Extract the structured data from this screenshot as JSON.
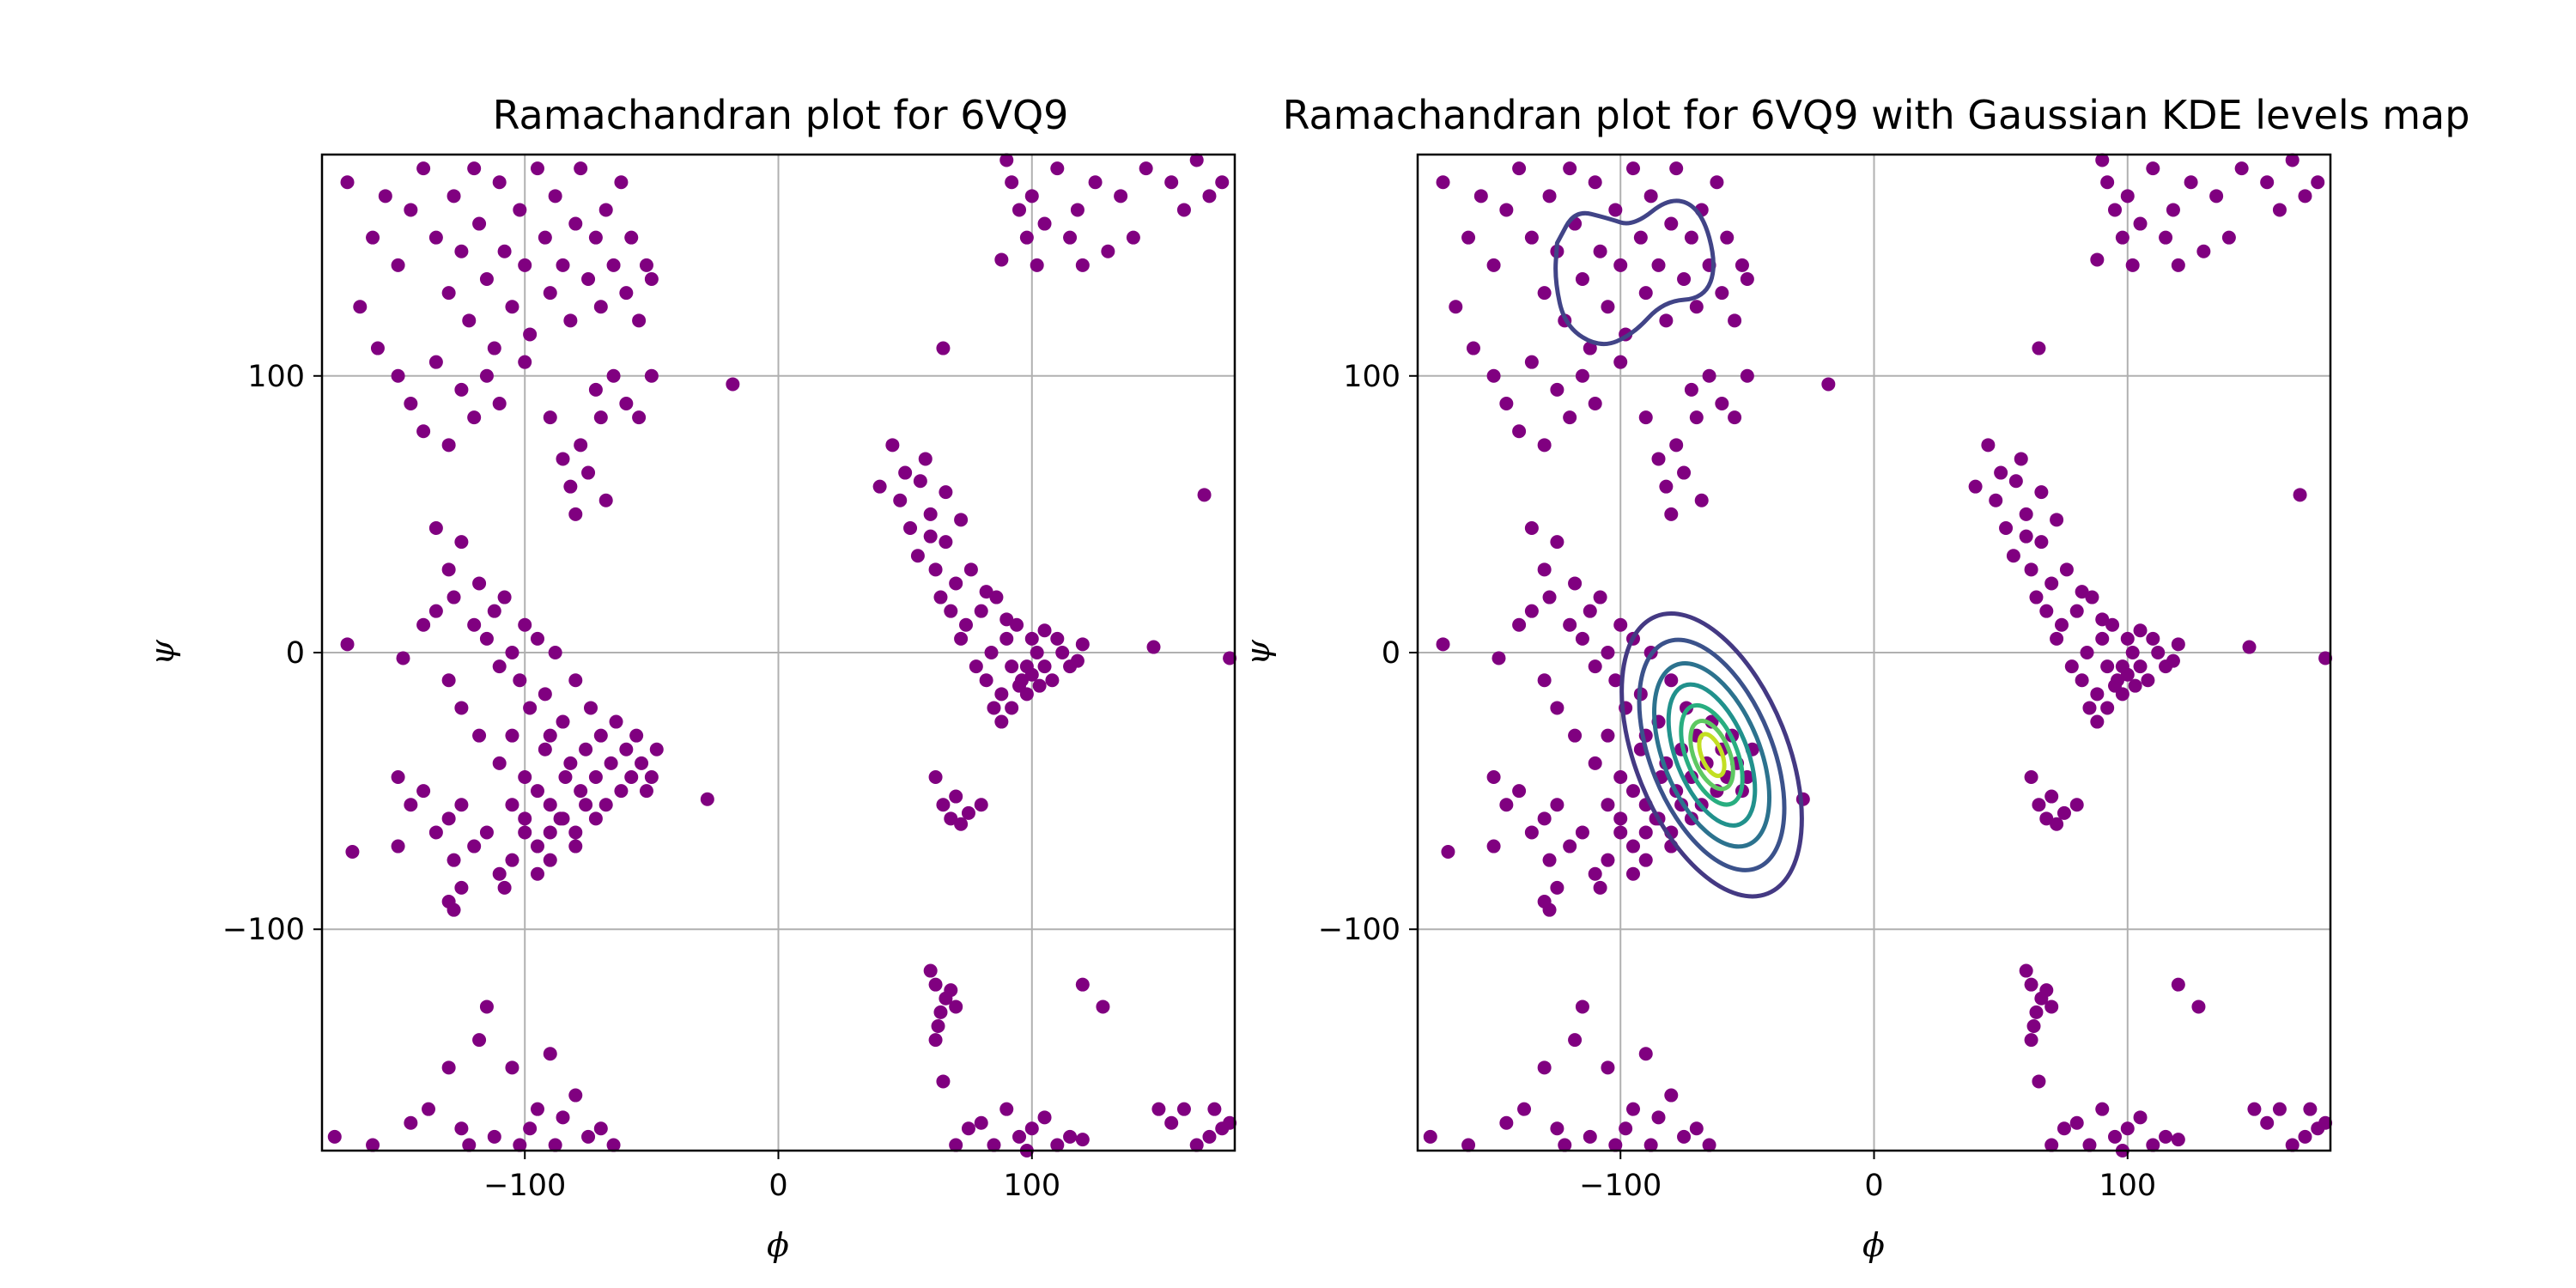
{
  "chart_data": [
    {
      "type": "scatter",
      "title": "Ramachandran plot for 6VQ9",
      "xlabel": "ϕ",
      "ylabel": "ψ",
      "xlim": [
        -180,
        180
      ],
      "ylim": [
        -180,
        180
      ],
      "xticks": [
        -100,
        0,
        100
      ],
      "yticks": [
        -100,
        0,
        100
      ],
      "x_tick_labels": [
        "−100",
        "0",
        "100"
      ],
      "y_tick_labels": [
        "−100",
        "0",
        "100"
      ],
      "grid": true,
      "point_color": "#800080",
      "points": [
        [
          -170,
          170
        ],
        [
          -160,
          150
        ],
        [
          -155,
          165
        ],
        [
          -150,
          140
        ],
        [
          -145,
          160
        ],
        [
          -140,
          175
        ],
        [
          -135,
          150
        ],
        [
          -130,
          130
        ],
        [
          -128,
          165
        ],
        [
          -125,
          145
        ],
        [
          -122,
          120
        ],
        [
          -120,
          175
        ],
        [
          -118,
          155
        ],
        [
          -115,
          135
        ],
        [
          -112,
          110
        ],
        [
          -110,
          170
        ],
        [
          -108,
          145
        ],
        [
          -105,
          125
        ],
        [
          -102,
          160
        ],
        [
          -100,
          140
        ],
        [
          -98,
          115
        ],
        [
          -95,
          175
        ],
        [
          -92,
          150
        ],
        [
          -90,
          130
        ],
        [
          -88,
          165
        ],
        [
          -85,
          140
        ],
        [
          -82,
          120
        ],
        [
          -80,
          155
        ],
        [
          -78,
          175
        ],
        [
          -75,
          135
        ],
        [
          -72,
          150
        ],
        [
          -70,
          125
        ],
        [
          -68,
          160
        ],
        [
          -65,
          140
        ],
        [
          -62,
          170
        ],
        [
          -60,
          130
        ],
        [
          -58,
          150
        ],
        [
          -55,
          120
        ],
        [
          -52,
          140
        ],
        [
          -50,
          135
        ],
        [
          -165,
          125
        ],
        [
          -158,
          110
        ],
        [
          -150,
          100
        ],
        [
          -145,
          90
        ],
        [
          -140,
          80
        ],
        [
          -135,
          105
        ],
        [
          -130,
          75
        ],
        [
          -125,
          95
        ],
        [
          -120,
          85
        ],
        [
          -115,
          100
        ],
        [
          -110,
          90
        ],
        [
          -100,
          105
        ],
        [
          -90,
          85
        ],
        [
          -85,
          70
        ],
        [
          -82,
          60
        ],
        [
          -80,
          50
        ],
        [
          -78,
          75
        ],
        [
          -75,
          65
        ],
        [
          -72,
          95
        ],
        [
          -70,
          85
        ],
        [
          -68,
          55
        ],
        [
          -65,
          100
        ],
        [
          -60,
          90
        ],
        [
          -55,
          85
        ],
        [
          -50,
          100
        ],
        [
          -135,
          45
        ],
        [
          -130,
          30
        ],
        [
          -128,
          20
        ],
        [
          -125,
          40
        ],
        [
          -120,
          10
        ],
        [
          -118,
          25
        ],
        [
          -115,
          5
        ],
        [
          -112,
          15
        ],
        [
          -110,
          -5
        ],
        [
          -108,
          20
        ],
        [
          -105,
          0
        ],
        [
          -102,
          -10
        ],
        [
          -100,
          10
        ],
        [
          -98,
          -20
        ],
        [
          -95,
          5
        ],
        [
          -92,
          -15
        ],
        [
          -90,
          -30
        ],
        [
          -88,
          0
        ],
        [
          -85,
          -25
        ],
        [
          -82,
          -40
        ],
        [
          -80,
          -10
        ],
        [
          -78,
          -50
        ],
        [
          -76,
          -35
        ],
        [
          -74,
          -20
        ],
        [
          -72,
          -45
        ],
        [
          -70,
          -30
        ],
        [
          -68,
          -55
        ],
        [
          -66,
          -40
        ],
        [
          -64,
          -25
        ],
        [
          -62,
          -50
        ],
        [
          -60,
          -35
        ],
        [
          -58,
          -45
        ],
        [
          -56,
          -30
        ],
        [
          -54,
          -40
        ],
        [
          -52,
          -50
        ],
        [
          -50,
          -45
        ],
        [
          -48,
          -35
        ],
        [
          -110,
          -40
        ],
        [
          -105,
          -30
        ],
        [
          -100,
          -45
        ],
        [
          -95,
          -50
        ],
        [
          -92,
          -35
        ],
        [
          -90,
          -55
        ],
        [
          -86,
          -60
        ],
        [
          -84,
          -45
        ],
        [
          -80,
          -65
        ],
        [
          -76,
          -55
        ],
        [
          -72,
          -60
        ],
        [
          -150,
          -45
        ],
        [
          -145,
          -55
        ],
        [
          -140,
          -50
        ],
        [
          -135,
          -65
        ],
        [
          -130,
          -60
        ],
        [
          -128,
          -75
        ],
        [
          -125,
          -55
        ],
        [
          -120,
          -70
        ],
        [
          -115,
          -65
        ],
        [
          -110,
          -80
        ],
        [
          -105,
          -55
        ],
        [
          -100,
          -65
        ],
        [
          -95,
          -70
        ],
        [
          -90,
          -75
        ],
        [
          -85,
          -60
        ],
        [
          -80,
          -70
        ],
        [
          -168,
          -72
        ],
        [
          -130,
          -90
        ],
        [
          -128,
          -93
        ],
        [
          -125,
          -85
        ],
        [
          -108,
          -85
        ],
        [
          -95,
          -80
        ],
        [
          -28,
          -53
        ],
        [
          -170,
          3
        ],
        [
          -148,
          -2
        ],
        [
          -140,
          10
        ],
        [
          -135,
          15
        ],
        [
          -130,
          -10
        ],
        [
          -125,
          -20
        ],
        [
          -118,
          -30
        ],
        [
          -100,
          -60
        ],
        [
          -90,
          -65
        ],
        [
          -105,
          -75
        ],
        [
          -18,
          97
        ],
        [
          -150,
          -70
        ],
        [
          -175,
          -175
        ],
        [
          -160,
          -178
        ],
        [
          -145,
          -170
        ],
        [
          -138,
          -165
        ],
        [
          -130,
          -150
        ],
        [
          -125,
          -172
        ],
        [
          -118,
          -140
        ],
        [
          -112,
          -175
        ],
        [
          -105,
          -150
        ],
        [
          -98,
          -172
        ],
        [
          -95,
          -165
        ],
        [
          -90,
          -145
        ],
        [
          -88,
          -178
        ],
        [
          -85,
          -168
        ],
        [
          -80,
          -160
        ],
        [
          -75,
          -175
        ],
        [
          -70,
          -172
        ],
        [
          -65,
          -178
        ],
        [
          -115,
          -128
        ],
        [
          -122,
          -178
        ],
        [
          -102,
          -178
        ],
        [
          40,
          60
        ],
        [
          45,
          75
        ],
        [
          48,
          55
        ],
        [
          50,
          65
        ],
        [
          52,
          45
        ],
        [
          55,
          35
        ],
        [
          58,
          70
        ],
        [
          60,
          50
        ],
        [
          62,
          30
        ],
        [
          64,
          20
        ],
        [
          66,
          40
        ],
        [
          68,
          15
        ],
        [
          70,
          25
        ],
        [
          72,
          5
        ],
        [
          74,
          10
        ],
        [
          76,
          30
        ],
        [
          78,
          -5
        ],
        [
          80,
          15
        ],
        [
          82,
          -10
        ],
        [
          84,
          0
        ],
        [
          86,
          20
        ],
        [
          88,
          -15
        ],
        [
          90,
          5
        ],
        [
          92,
          -5
        ],
        [
          94,
          10
        ],
        [
          96,
          -10
        ],
        [
          98,
          -5
        ],
        [
          100,
          5
        ],
        [
          102,
          0
        ],
        [
          105,
          -5
        ],
        [
          108,
          -10
        ],
        [
          110,
          5
        ],
        [
          112,
          0
        ],
        [
          115,
          -5
        ],
        [
          118,
          -3
        ],
        [
          120,
          3
        ],
        [
          62,
          -45
        ],
        [
          65,
          -55
        ],
        [
          68,
          -60
        ],
        [
          70,
          -52
        ],
        [
          72,
          -62
        ],
        [
          75,
          -58
        ],
        [
          80,
          -55
        ],
        [
          85,
          -20
        ],
        [
          88,
          -25
        ],
        [
          92,
          -20
        ],
        [
          95,
          -12
        ],
        [
          98,
          -15
        ],
        [
          100,
          -8
        ],
        [
          103,
          -12
        ],
        [
          65,
          110
        ],
        [
          56,
          62
        ],
        [
          60,
          42
        ],
        [
          66,
          58
        ],
        [
          72,
          48
        ],
        [
          82,
          22
        ],
        [
          90,
          12
        ],
        [
          105,
          8
        ],
        [
          88,
          142
        ],
        [
          90,
          178
        ],
        [
          92,
          170
        ],
        [
          95,
          160
        ],
        [
          98,
          150
        ],
        [
          100,
          165
        ],
        [
          102,
          140
        ],
        [
          105,
          155
        ],
        [
          110,
          175
        ],
        [
          115,
          150
        ],
        [
          118,
          160
        ],
        [
          120,
          140
        ],
        [
          125,
          170
        ],
        [
          130,
          145
        ],
        [
          135,
          165
        ],
        [
          140,
          150
        ],
        [
          145,
          175
        ],
        [
          155,
          170
        ],
        [
          160,
          160
        ],
        [
          165,
          178
        ],
        [
          170,
          165
        ],
        [
          175,
          170
        ],
        [
          168,
          57
        ],
        [
          148,
          2
        ],
        [
          178,
          -2
        ],
        [
          60,
          -115
        ],
        [
          62,
          -120
        ],
        [
          64,
          -130
        ],
        [
          66,
          -125
        ],
        [
          68,
          -122
        ],
        [
          63,
          -135
        ],
        [
          65,
          -155
        ],
        [
          62,
          -140
        ],
        [
          70,
          -128
        ],
        [
          120,
          -120
        ],
        [
          128,
          -128
        ],
        [
          70,
          -178
        ],
        [
          75,
          -172
        ],
        [
          80,
          -170
        ],
        [
          85,
          -178
        ],
        [
          90,
          -165
        ],
        [
          95,
          -175
        ],
        [
          98,
          -180
        ],
        [
          100,
          -172
        ],
        [
          105,
          -168
        ],
        [
          110,
          -178
        ],
        [
          115,
          -175
        ],
        [
          120,
          -176
        ],
        [
          150,
          -165
        ],
        [
          155,
          -170
        ],
        [
          160,
          -165
        ],
        [
          165,
          -178
        ],
        [
          170,
          -175
        ],
        [
          175,
          -172
        ],
        [
          178,
          -170
        ],
        [
          172,
          -165
        ]
      ]
    },
    {
      "type": "scatter",
      "title": "Ramachandran plot for 6VQ9 with Gaussian KDE levels map",
      "xlabel": "ϕ",
      "ylabel": "ψ",
      "xlim": [
        -180,
        180
      ],
      "ylim": [
        -180,
        180
      ],
      "xticks": [
        -100,
        0,
        100
      ],
      "yticks": [
        -100,
        0,
        100
      ],
      "x_tick_labels": [
        "−100",
        "0",
        "100"
      ],
      "y_tick_labels": [
        "−100",
        "0",
        "100"
      ],
      "grid": true,
      "point_color": "#800080",
      "points_same_as_panel": 0,
      "kde_contours": [
        {
          "level": 1,
          "color": "#443983",
          "center": [
            -64,
            -37
          ],
          "semi_axes": [
            30,
            54
          ],
          "angle_deg": -22
        },
        {
          "level": 2,
          "color": "#3b528b",
          "center": [
            -64,
            -37
          ],
          "semi_axes": [
            24,
            44
          ],
          "angle_deg": -22
        },
        {
          "level": 3,
          "color": "#2c728e",
          "center": [
            -64,
            -37
          ],
          "semi_axes": [
            19,
            35
          ],
          "angle_deg": -22
        },
        {
          "level": 4,
          "color": "#21918c",
          "center": [
            -64,
            -37
          ],
          "semi_axes": [
            14,
            27
          ],
          "angle_deg": -22
        },
        {
          "level": 5,
          "color": "#28ae80",
          "center": [
            -64,
            -37
          ],
          "semi_axes": [
            10,
            19
          ],
          "angle_deg": -22
        },
        {
          "level": 6,
          "color": "#5ec962",
          "center": [
            -64,
            -37
          ],
          "semi_axes": [
            7,
            13
          ],
          "angle_deg": -22
        },
        {
          "level": 7,
          "color": "#c2df23",
          "center": [
            -64,
            -37
          ],
          "semi_axes": [
            4,
            8
          ],
          "angle_deg": -22
        }
      ],
      "kde_beta_contour": {
        "level": 1,
        "color": "#414487",
        "path": [
          [
            -125,
            148
          ],
          [
            -118,
            160
          ],
          [
            -105,
            157
          ],
          [
            -95,
            154
          ],
          [
            -80,
            165
          ],
          [
            -68,
            160
          ],
          [
            -62,
            140
          ],
          [
            -67,
            128
          ],
          [
            -83,
            127
          ],
          [
            -95,
            115
          ],
          [
            -108,
            110
          ],
          [
            -122,
            118
          ],
          [
            -126,
            135
          ],
          [
            -125,
            148
          ]
        ]
      }
    }
  ]
}
